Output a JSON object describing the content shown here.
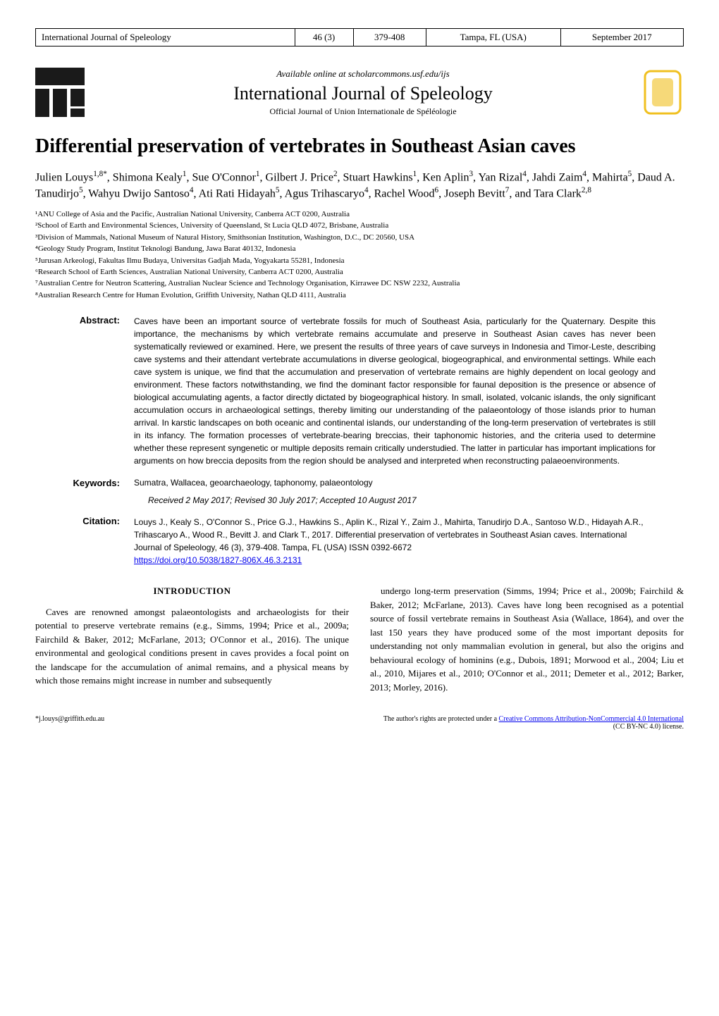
{
  "header": {
    "journal": "International Journal of Speleology",
    "volume": "46 (3)",
    "pages": "379-408",
    "location": "Tampa, FL (USA)",
    "date": "September 2017"
  },
  "banner": {
    "available_line": "Available online at scholarcommons.usf.edu/ijs",
    "journal_name": "International Journal of Speleology",
    "official_line": "Official Journal of Union Internationale de Spéléologie"
  },
  "title": "Differential preservation of vertebrates in Southeast Asian caves",
  "authors_html": "Julien Louys<sup>1,8*</sup>, Shimona Kealy<sup>1</sup>, Sue O'Connor<sup>1</sup>, Gilbert J. Price<sup>2</sup>, Stuart Hawkins<sup>1</sup>, Ken Aplin<sup>3</sup>, Yan Rizal<sup>4</sup>, Jahdi Zaim<sup>4</sup>, Mahirta<sup>5</sup>, Daud A. Tanudirjo<sup>5</sup>, Wahyu Dwijo Santoso<sup>4</sup>, Ati Rati Hidayah<sup>5</sup>, Agus Trihascaryo<sup>4</sup>, Rachel Wood<sup>6</sup>, Joseph Bevitt<sup>7</sup>, and Tara Clark<sup>2,8</sup>",
  "affiliations": [
    "¹ANU College of Asia and the Pacific, Australian National University, Canberra ACT 0200, Australia",
    "²School of Earth and Environmental Sciences, University of Queensland, St Lucia QLD 4072, Brisbane, Australia",
    "³Division of Mammals, National Museum of Natural History, Smithsonian Institution, Washington, D.C., DC 20560, USA",
    "⁴Geology Study Program, Institut Teknologi Bandung, Jawa Barat 40132, Indonesia",
    "⁵Jurusan Arkeologi, Fakultas Ilmu Budaya, Universitas Gadjah Mada, Yogyakarta 55281, Indonesia",
    "⁶Research School of Earth Sciences, Australian National University, Canberra ACT 0200, Australia",
    "⁷Australian Centre for Neutron Scattering, Australian Nuclear Science and Technology Organisation, Kirrawee DC NSW 2232, Australia",
    "⁸Australian Research Centre for Human Evolution, Griffith University, Nathan QLD 4111, Australia"
  ],
  "abstract": {
    "label": "Abstract:",
    "text": "Caves have been an important source of vertebrate fossils for much of Southeast Asia, particularly for the Quaternary. Despite this importance, the mechanisms by which vertebrate remains accumulate and preserve in Southeast Asian caves has never been systematically reviewed or examined. Here, we present the results of three years of cave surveys in Indonesia and Timor-Leste, describing cave systems and their attendant vertebrate accumulations in diverse geological, biogeographical, and environmental settings. While each cave system is unique, we find that the accumulation and preservation of vertebrate remains are highly dependent on local geology and environment. These factors notwithstanding, we find the dominant factor responsible for faunal deposition is the presence or absence of biological accumulating agents, a factor directly dictated by biogeographical history. In small, isolated, volcanic islands, the only significant accumulation occurs in archaeological settings, thereby limiting our understanding of the palaeontology of those islands prior to human arrival. In karstic landscapes on both oceanic and continental islands, our understanding of the long-term preservation of vertebrates is still in its infancy. The formation processes of vertebrate-bearing breccias, their taphonomic histories, and the criteria used to determine whether these represent syngenetic or multiple deposits remain critically understudied. The latter in particular has important implications for arguments on how breccia deposits from the region should be analysed and interpreted when reconstructing palaeoenvironments."
  },
  "keywords": {
    "label": "Keywords:",
    "text": "Sumatra, Wallacea, geoarchaeology, taphonomy, palaeontology"
  },
  "received": "Received 2 May 2017; Revised 30 July 2017; Accepted 10 August 2017",
  "citation": {
    "label": "Citation:",
    "text": "Louys J., Kealy S., O'Connor S., Price G.J., Hawkins S., Aplin K., Rizal Y., Zaim J., Mahirta, Tanudirjo D.A., Santoso W.D., Hidayah A.R., Trihascaryo A., Wood R., Bevitt J. and Clark T., 2017. Differential preservation of vertebrates in Southeast Asian caves. International Journal of Speleology, 46 (3), 379-408. Tampa, FL (USA) ISSN 0392-6672",
    "doi": "https://doi.org/10.5038/1827-806X.46.3.2131"
  },
  "introduction": {
    "heading": "INTRODUCTION",
    "col1": "Caves are renowned amongst palaeontologists and archaeologists for their potential to preserve vertebrate remains (e.g., Simms, 1994; Price et al., 2009a; Fairchild & Baker, 2012; McFarlane, 2013; O'Connor et al., 2016). The unique environmental and geological conditions present in caves provides a focal point on the landscape for the accumulation of animal remains, and a physical means by which those remains might increase in number and subsequently",
    "col2": "undergo long-term preservation (Simms, 1994; Price et al., 2009b; Fairchild & Baker, 2012; McFarlane, 2013). Caves have long been recognised as a potential source of fossil vertebrate remains in Southeast Asia (Wallace, 1864), and over the last 150 years they have produced some of the most important deposits for understanding not only mammalian evolution in general, but also the origins and behavioural ecology of hominins (e.g., Dubois, 1891; Morwood et al., 2004; Liu et al., 2010, Mijares et al., 2010; O'Connor et al., 2011; Demeter et al., 2012; Barker, 2013; Morley, 2016)."
  },
  "footer": {
    "email": "*j.louys@griffith.edu.au",
    "rights_text": "The author's rights are protected under a ",
    "cc_link": "Creative Commons Attribution-NonCommercial 4.0 International",
    "license_suffix": " (CC BY-NC 4.0) license."
  },
  "colors": {
    "text": "#000000",
    "background": "#ffffff",
    "link": "#0000ee",
    "logo_dark": "#1a1a1a",
    "logo_yellow": "#f0c020"
  }
}
